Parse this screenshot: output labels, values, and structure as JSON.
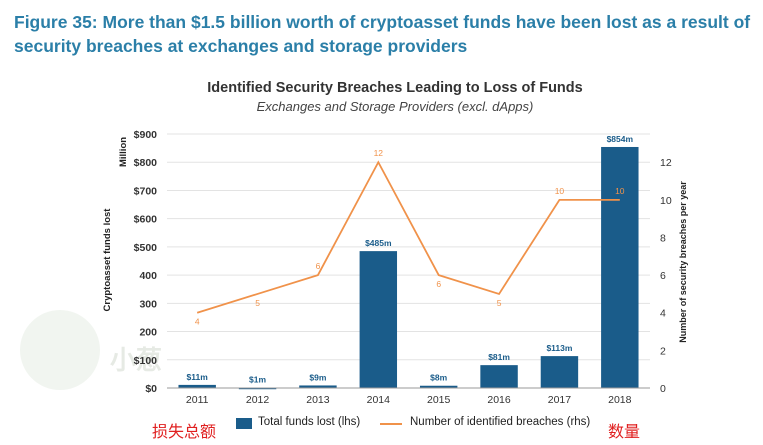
{
  "figure_title": "Figure 35: More than $1.5 billion worth of cryptoasset funds have been lost as a result of security breaches at exchanges and storage providers",
  "watermark_text": "小葱",
  "chinese_labels": {
    "left": "损失总额",
    "right": "数量"
  },
  "colors": {
    "bar": "#1a5c8a",
    "line": "#f0924a",
    "title": "#2b7fa8"
  },
  "chart_data": {
    "type": "bar",
    "title": "Identified Security Breaches Leading to Loss of Funds",
    "subtitle": "Exchanges and Storage Providers (excl. dApps)",
    "categories": [
      "2011",
      "2012",
      "2013",
      "2014",
      "2015",
      "2016",
      "2017",
      "2018"
    ],
    "series": [
      {
        "name": "Total funds lost (lhs)",
        "type": "bar",
        "axis": "left",
        "values": [
          11,
          1,
          9,
          485,
          8,
          81,
          113,
          854
        ],
        "labels": [
          "$11m",
          "$1m",
          "$9m",
          "$485m",
          "$8m",
          "$81m",
          "$113m",
          "$854m"
        ]
      },
      {
        "name": "Number of identified breaches (rhs)",
        "type": "line",
        "axis": "right",
        "values": [
          4,
          5,
          6,
          12,
          6,
          5,
          10,
          10
        ],
        "labels": [
          "4",
          "5",
          "6",
          "12",
          "6",
          "5",
          "10",
          "10"
        ]
      }
    ],
    "y_left": {
      "label": "Cryptoasset funds lost",
      "unit": "Million",
      "range": [
        0,
        900
      ],
      "ticks": [
        0,
        100,
        200,
        300,
        400,
        500,
        600,
        700,
        800,
        900
      ],
      "tick_labels": [
        "$0",
        "$100",
        "200",
        "300",
        "400",
        "$500",
        "$600",
        "$700",
        "$800",
        "$900"
      ]
    },
    "y_right": {
      "label": "Number of security breaches per year",
      "range": [
        0,
        13.5
      ],
      "ticks": [
        0,
        2,
        4,
        6,
        8,
        10,
        12
      ],
      "tick_labels": [
        "0",
        "2",
        "4",
        "6",
        "8",
        "10",
        "12"
      ]
    },
    "grid": true,
    "legend_position": "bottom"
  }
}
